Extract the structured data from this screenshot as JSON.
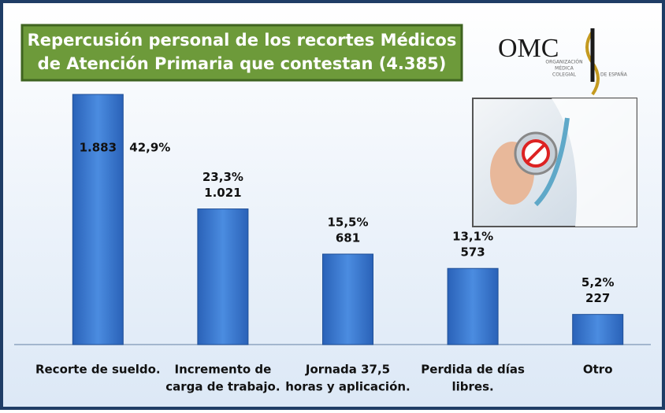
{
  "chart_data": {
    "type": "bar",
    "title": [
      "Repercusión personal de los recortes Médicos",
      "de Atención Primaria que contestan (4.385)"
    ],
    "logo": {
      "text": "OMC",
      "subtext": [
        "ORGANIZACIÓN",
        "MÉDICA",
        "COLEGIAL",
        "DE ESPAÑA"
      ]
    },
    "categories": [
      [
        "Recorte de sueldo."
      ],
      [
        "Incremento de",
        "carga de trabajo."
      ],
      [
        "Jornada 37,5",
        "horas y aplicación."
      ],
      [
        "Perdida de días",
        "libres."
      ],
      [
        "Otro"
      ]
    ],
    "values": [
      1883,
      1021,
      681,
      573,
      227
    ],
    "value_labels": [
      "1.883",
      "1.021",
      "681",
      "573",
      "227"
    ],
    "percentages": [
      42.9,
      23.3,
      15.5,
      13.1,
      5.2
    ],
    "percentage_labels": [
      "42,9%",
      "23,3%",
      "15,5%",
      "13,1%",
      "5,2%"
    ],
    "color": "#3a78d0",
    "percentage_color": "#8b1a1a"
  }
}
